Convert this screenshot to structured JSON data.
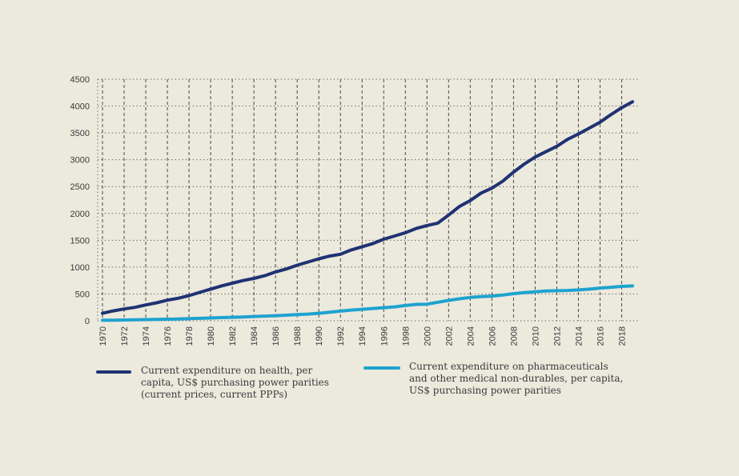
{
  "chart_data": {
    "type": "line",
    "title": "",
    "xlabel": "",
    "ylabel": "",
    "ylim": [
      0,
      4500
    ],
    "y_ticks": [
      0,
      500,
      1000,
      1500,
      2000,
      2500,
      3000,
      3500,
      4000,
      4500
    ],
    "x_ticks": [
      1970,
      1972,
      1974,
      1976,
      1978,
      1980,
      1982,
      1984,
      1986,
      1988,
      1990,
      1992,
      1994,
      1996,
      1998,
      2000,
      2002,
      2004,
      2006,
      2008,
      2010,
      2012,
      2014,
      2016,
      2018
    ],
    "grid": "vertical dashed lines, horizontal dotted lines",
    "legend_position": "bottom",
    "x": [
      1970,
      1971,
      1972,
      1973,
      1974,
      1975,
      1976,
      1977,
      1978,
      1979,
      1980,
      1981,
      1982,
      1983,
      1984,
      1985,
      1986,
      1987,
      1988,
      1989,
      1990,
      1991,
      1992,
      1993,
      1994,
      1995,
      1996,
      1997,
      1998,
      1999,
      2000,
      2001,
      2002,
      2003,
      2004,
      2005,
      2006,
      2007,
      2008,
      2009,
      2010,
      2011,
      2012,
      2013,
      2014,
      2015,
      2016,
      2017,
      2018,
      2019
    ],
    "series": [
      {
        "name": "Current expenditure on health, per capita, US$ purchasing power parities (current prices, current PPPs)",
        "legend_lines": [
          "Current expenditure on health, per",
          "capita, US$ purchasing power parities",
          "(current prices, current PPPs)"
        ],
        "color": "#1f3273",
        "values": [
          140,
          185,
          220,
          250,
          295,
          335,
          385,
          420,
          470,
          530,
          590,
          650,
          700,
          750,
          790,
          840,
          910,
          965,
          1035,
          1095,
          1155,
          1205,
          1240,
          1320,
          1380,
          1440,
          1520,
          1580,
          1640,
          1720,
          1775,
          1820,
          1970,
          2130,
          2240,
          2380,
          2470,
          2600,
          2770,
          2920,
          3050,
          3150,
          3250,
          3380,
          3480,
          3590,
          3700,
          3840,
          3970,
          4080
        ]
      },
      {
        "name": "Current expenditure on pharmaceuticals and other medical non-durables, per capita, US$ purchasing power parities",
        "legend_lines": [
          "Current expenditure on pharmaceuticals",
          "and other medical non-durables, per capita,",
          "US$ purchasing power parities"
        ],
        "color": "#1ea3cf",
        "values": [
          10,
          12,
          15,
          18,
          22,
          26,
          30,
          34,
          40,
          46,
          52,
          60,
          66,
          72,
          80,
          88,
          96,
          105,
          115,
          125,
          140,
          160,
          180,
          200,
          215,
          230,
          245,
          260,
          285,
          305,
          310,
          345,
          380,
          410,
          435,
          450,
          460,
          480,
          505,
          525,
          540,
          555,
          560,
          565,
          575,
          590,
          610,
          625,
          640,
          650
        ]
      }
    ]
  }
}
